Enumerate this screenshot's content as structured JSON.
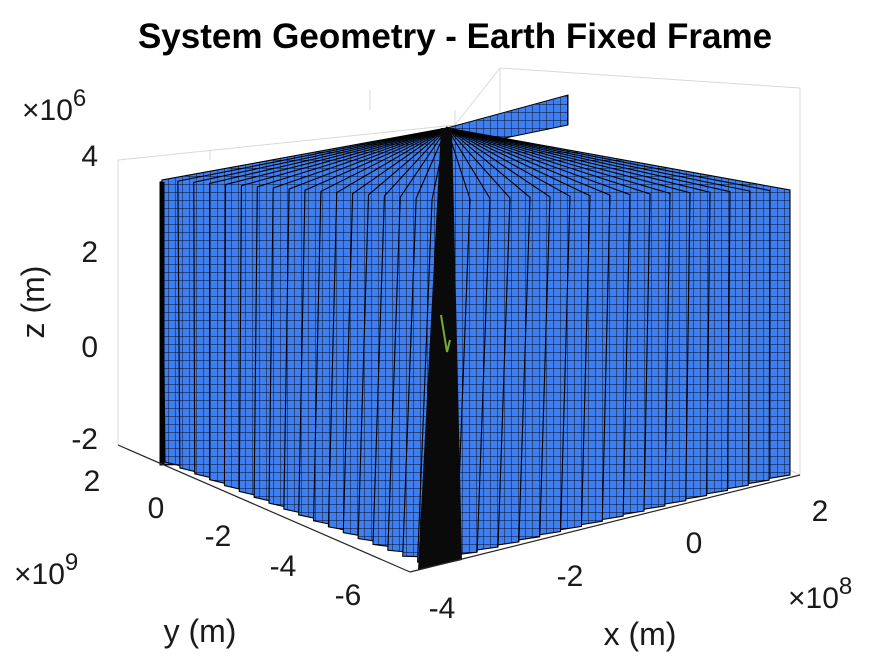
{
  "chart_data": {
    "type": "surface3d",
    "title": "System Geometry - Earth Fixed Frame",
    "xlabel": "x (m)",
    "ylabel": "y (m)",
    "zlabel": "z (m)",
    "x_ticks": [
      "-4",
      "-2",
      "0",
      "2"
    ],
    "y_ticks": [
      "2",
      "0",
      "-2",
      "-4",
      "-6"
    ],
    "z_ticks": [
      "4",
      "2",
      "0",
      "-2"
    ],
    "x_exponent": "10",
    "x_exponent_power": "8",
    "y_exponent": "10",
    "y_exponent_power": "9",
    "z_exponent": "10",
    "z_exponent_power": "6",
    "x_exponent_prefix": "×",
    "y_exponent_prefix": "×",
    "z_exponent_prefix": "×",
    "xlim": [
      -400000000.0,
      200000000.0
    ],
    "ylim": [
      -6000000000.0,
      2000000000.0
    ],
    "zlim": [
      -2000000.0,
      4000000.0
    ],
    "panel_count": 36,
    "panel_color": "#3d7ff2",
    "edge_color": "#000000",
    "trajectory_color": "#77ac30"
  }
}
